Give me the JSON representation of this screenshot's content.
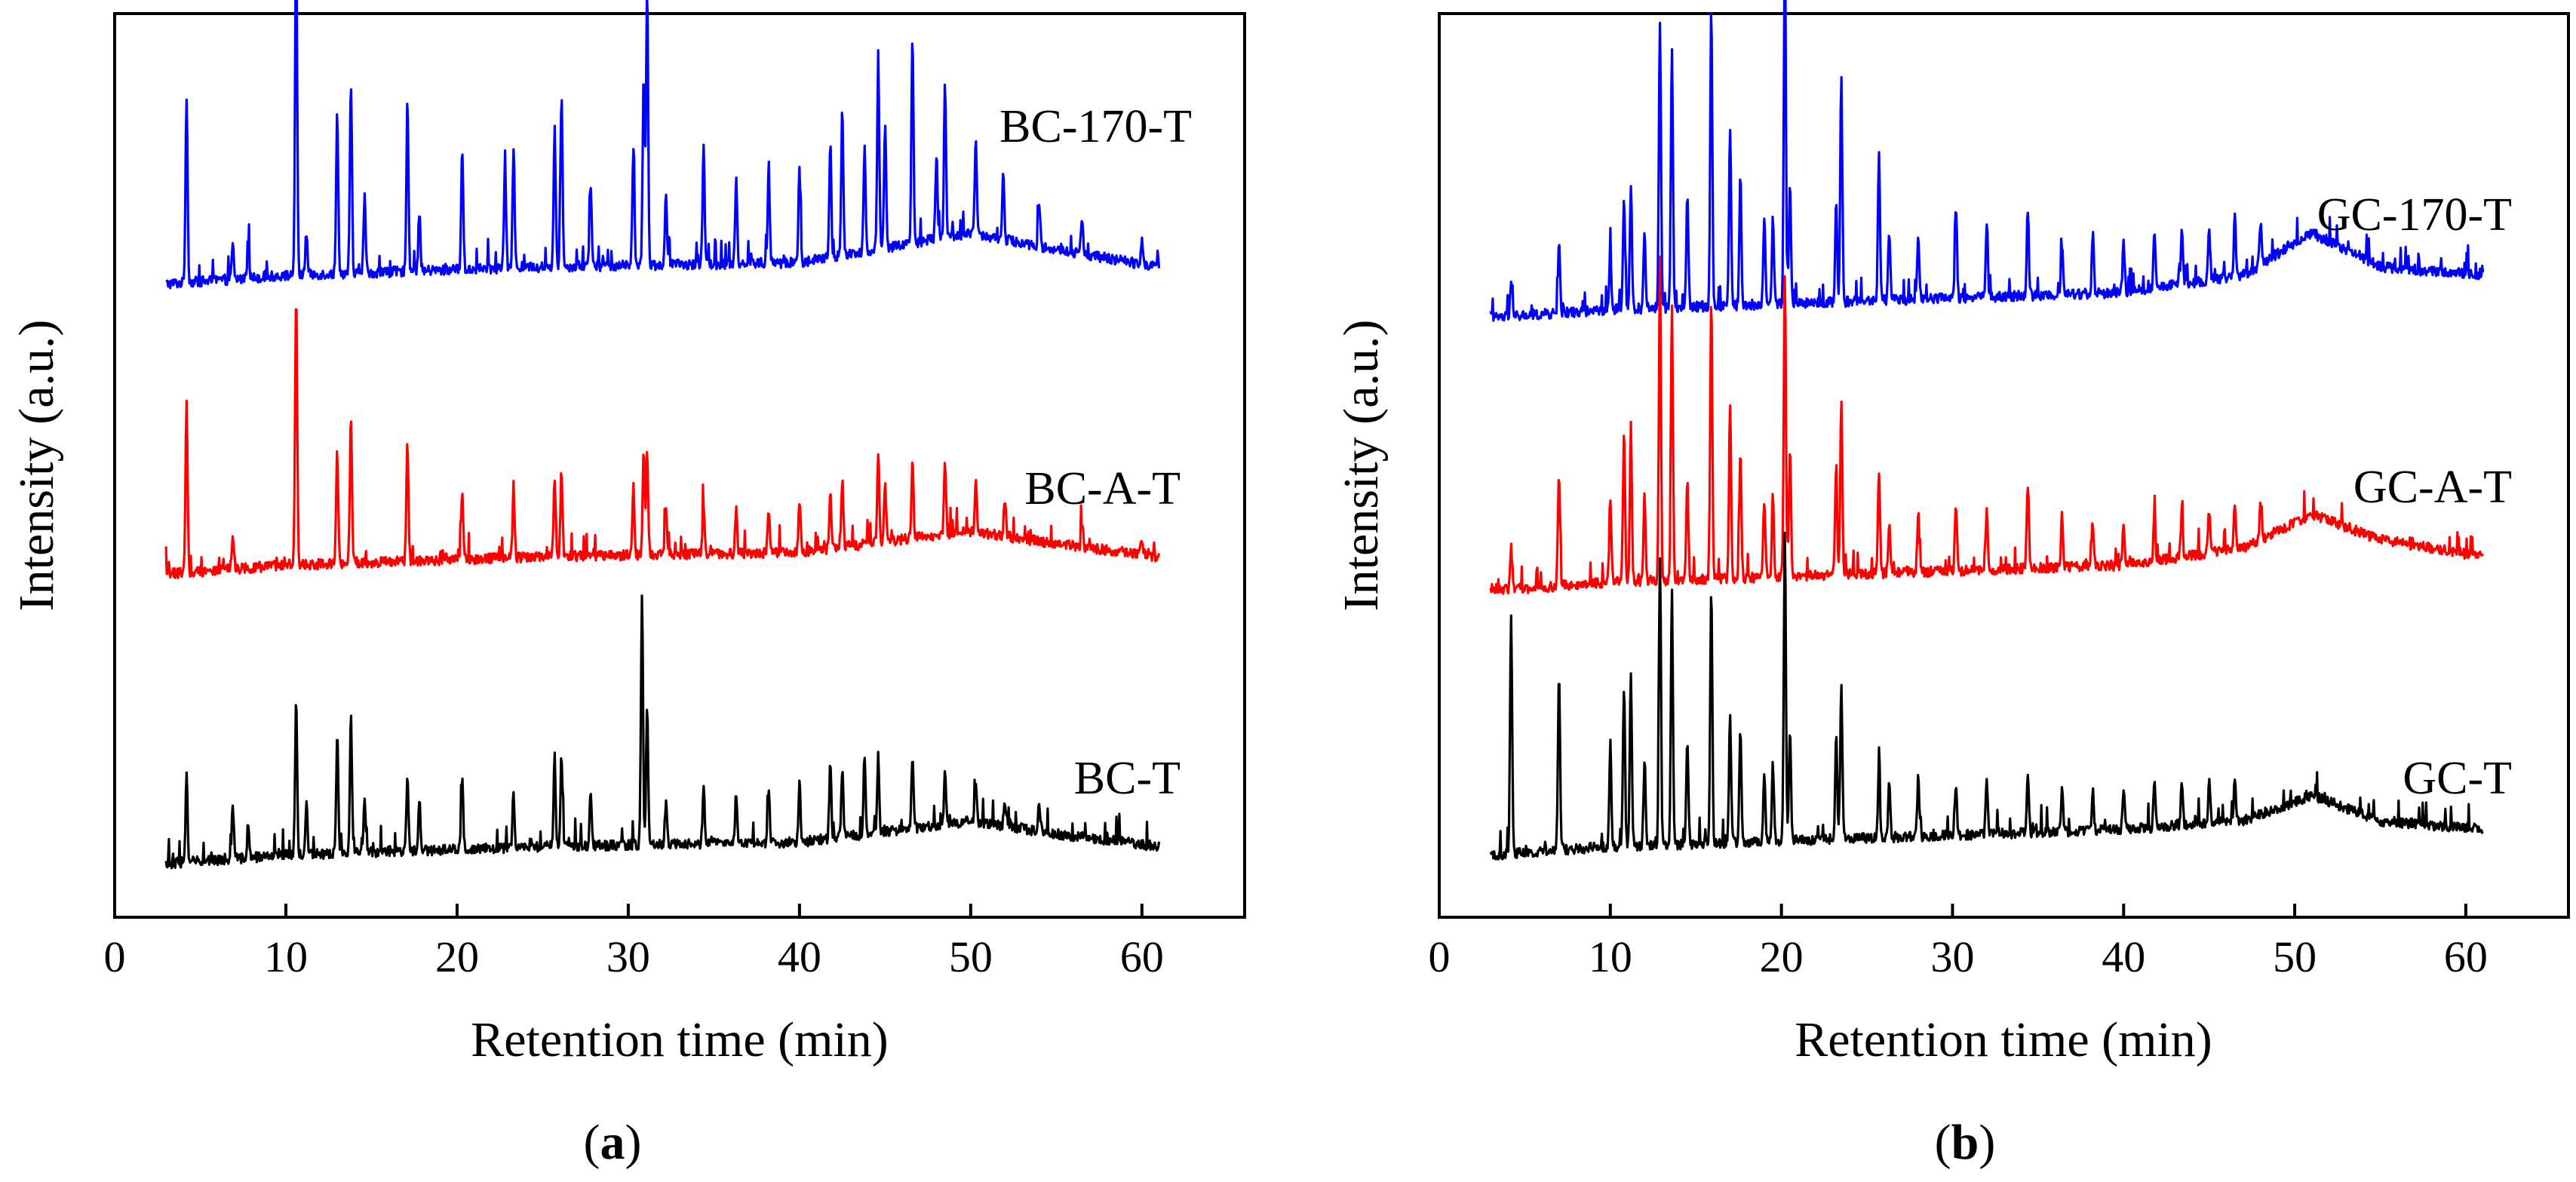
{
  "chart_data": [
    {
      "id": "a",
      "type": "line",
      "panel_label": {
        "open": "(",
        "letter": "a",
        "close": ")"
      },
      "xlabel": "Retention time (min)",
      "ylabel": "Intensity (a.u.)",
      "xlim": [
        0,
        66
      ],
      "xticks": [
        0,
        10,
        20,
        30,
        40,
        50,
        60
      ],
      "y_relative_stack": true,
      "series": [
        {
          "name": "BC-170-T",
          "color": "#0000ff",
          "offset": 0.72,
          "x_range": [
            3,
            61
          ],
          "baseline": [
            [
              3,
              0.0
            ],
            [
              10,
              0.01
            ],
            [
              25,
              0.02
            ],
            [
              40,
              0.025
            ],
            [
              50,
              0.06
            ],
            [
              55,
              0.04
            ],
            [
              61,
              0.02
            ]
          ],
          "peaks": [
            [
              4.2,
              0.22
            ],
            [
              6.9,
              0.04
            ],
            [
              7.8,
              0.04
            ],
            [
              10.6,
              0.41
            ],
            [
              11.2,
              0.05
            ],
            [
              13.0,
              0.19
            ],
            [
              13.8,
              0.22
            ],
            [
              14.6,
              0.09
            ],
            [
              17.1,
              0.2
            ],
            [
              17.8,
              0.07
            ],
            [
              20.3,
              0.14
            ],
            [
              22.8,
              0.12
            ],
            [
              23.3,
              0.14
            ],
            [
              25.7,
              0.16
            ],
            [
              26.1,
              0.2
            ],
            [
              27.8,
              0.1
            ],
            [
              30.3,
              0.14
            ],
            [
              30.9,
              0.22
            ],
            [
              31.1,
              0.32
            ],
            [
              32.2,
              0.08
            ],
            [
              34.4,
              0.14
            ],
            [
              36.3,
              0.1
            ],
            [
              38.2,
              0.11
            ],
            [
              40.0,
              0.11
            ],
            [
              41.8,
              0.13
            ],
            [
              42.5,
              0.17
            ],
            [
              43.8,
              0.12
            ],
            [
              44.6,
              0.22
            ],
            [
              45.0,
              0.15
            ],
            [
              46.6,
              0.24
            ],
            [
              48.0,
              0.1
            ],
            [
              48.5,
              0.18
            ],
            [
              50.3,
              0.11
            ],
            [
              51.9,
              0.08
            ],
            [
              54.0,
              0.05
            ],
            [
              56.5,
              0.04
            ],
            [
              60.0,
              0.03
            ]
          ]
        },
        {
          "name": "BC-A-T",
          "color": "#ff0000",
          "offset": 0.38,
          "x_range": [
            3,
            61
          ],
          "baseline": [
            [
              3,
              0.0
            ],
            [
              10,
              0.01
            ],
            [
              25,
              0.02
            ],
            [
              40,
              0.025
            ],
            [
              50,
              0.05
            ],
            [
              55,
              0.035
            ],
            [
              61,
              0.02
            ]
          ],
          "peaks": [
            [
              4.2,
              0.2
            ],
            [
              6.9,
              0.04
            ],
            [
              10.6,
              0.32
            ],
            [
              13.0,
              0.13
            ],
            [
              13.8,
              0.17
            ],
            [
              17.1,
              0.14
            ],
            [
              20.3,
              0.08
            ],
            [
              23.3,
              0.08
            ],
            [
              25.7,
              0.09
            ],
            [
              26.1,
              0.1
            ],
            [
              30.3,
              0.08
            ],
            [
              30.9,
              0.12
            ],
            [
              31.1,
              0.12
            ],
            [
              32.2,
              0.05
            ],
            [
              34.4,
              0.06
            ],
            [
              36.3,
              0.05
            ],
            [
              38.2,
              0.05
            ],
            [
              40.0,
              0.06
            ],
            [
              41.8,
              0.07
            ],
            [
              42.5,
              0.08
            ],
            [
              44.6,
              0.1
            ],
            [
              45.0,
              0.07
            ],
            [
              46.6,
              0.09
            ],
            [
              48.5,
              0.08
            ],
            [
              50.3,
              0.06
            ],
            [
              52.0,
              0.04
            ],
            [
              56.5,
              0.03
            ],
            [
              60.0,
              0.02
            ]
          ]
        },
        {
          "name": "BC-T",
          "color": "#000000",
          "offset": 0.04,
          "x_range": [
            3,
            61
          ],
          "baseline": [
            [
              3,
              0.0
            ],
            [
              10,
              0.01
            ],
            [
              25,
              0.02
            ],
            [
              40,
              0.025
            ],
            [
              50,
              0.05
            ],
            [
              55,
              0.035
            ],
            [
              61,
              0.02
            ]
          ],
          "peaks": [
            [
              4.2,
              0.1
            ],
            [
              6.9,
              0.06
            ],
            [
              7.8,
              0.04
            ],
            [
              10.6,
              0.18
            ],
            [
              11.2,
              0.06
            ],
            [
              13.0,
              0.14
            ],
            [
              13.8,
              0.16
            ],
            [
              14.6,
              0.06
            ],
            [
              17.1,
              0.09
            ],
            [
              17.8,
              0.06
            ],
            [
              20.3,
              0.08
            ],
            [
              23.3,
              0.06
            ],
            [
              25.7,
              0.09
            ],
            [
              26.1,
              0.1
            ],
            [
              27.8,
              0.06
            ],
            [
              30.8,
              0.29
            ],
            [
              31.1,
              0.16
            ],
            [
              32.2,
              0.05
            ],
            [
              34.4,
              0.07
            ],
            [
              36.3,
              0.06
            ],
            [
              38.2,
              0.06
            ],
            [
              40.0,
              0.07
            ],
            [
              41.8,
              0.09
            ],
            [
              42.5,
              0.08
            ],
            [
              43.8,
              0.09
            ],
            [
              44.6,
              0.09
            ],
            [
              46.6,
              0.08
            ],
            [
              48.5,
              0.06
            ],
            [
              50.3,
              0.04
            ],
            [
              52.0,
              0.03
            ],
            [
              54.0,
              0.03
            ]
          ]
        }
      ]
    },
    {
      "id": "b",
      "type": "line",
      "panel_label": {
        "open": "(",
        "letter": "b",
        "close": ")"
      },
      "xlabel": "Retention time (min)",
      "ylabel": "Intensity (a.u.)",
      "xlim": [
        0,
        66
      ],
      "xticks": [
        0,
        10,
        20,
        30,
        40,
        50,
        60
      ],
      "y_relative_stack": true,
      "series": [
        {
          "name": "GC-170-T",
          "color": "#0000ff",
          "offset": 0.68,
          "x_range": [
            3,
            61
          ],
          "baseline": [
            [
              3,
              0.0
            ],
            [
              10,
              0.01
            ],
            [
              25,
              0.02
            ],
            [
              40,
              0.03
            ],
            [
              47,
              0.05
            ],
            [
              51,
              0.1
            ],
            [
              55,
              0.06
            ],
            [
              61,
              0.05
            ]
          ],
          "peaks": [
            [
              4.2,
              0.04
            ],
            [
              7.0,
              0.08
            ],
            [
              10.0,
              0.07
            ],
            [
              10.8,
              0.13
            ],
            [
              11.2,
              0.14
            ],
            [
              12.0,
              0.09
            ],
            [
              12.9,
              0.34
            ],
            [
              13.6,
              0.31
            ],
            [
              14.5,
              0.13
            ],
            [
              15.9,
              0.35
            ],
            [
              17.0,
              0.21
            ],
            [
              17.6,
              0.15
            ],
            [
              19.0,
              0.1
            ],
            [
              19.5,
              0.1
            ],
            [
              20.2,
              0.42
            ],
            [
              20.5,
              0.14
            ],
            [
              23.2,
              0.12
            ],
            [
              23.5,
              0.26
            ],
            [
              25.7,
              0.17
            ],
            [
              26.3,
              0.08
            ],
            [
              28.0,
              0.07
            ],
            [
              30.2,
              0.11
            ],
            [
              32.0,
              0.09
            ],
            [
              34.4,
              0.1
            ],
            [
              36.4,
              0.06
            ],
            [
              38.2,
              0.07
            ],
            [
              40.0,
              0.06
            ],
            [
              41.8,
              0.06
            ],
            [
              43.4,
              0.06
            ],
            [
              45.0,
              0.06
            ],
            [
              46.5,
              0.07
            ],
            [
              48.0,
              0.05
            ]
          ]
        },
        {
          "name": "GC-A-T",
          "color": "#ff0000",
          "offset": 0.36,
          "x_range": [
            3,
            61
          ],
          "baseline": [
            [
              3,
              0.0
            ],
            [
              10,
              0.01
            ],
            [
              25,
              0.02
            ],
            [
              40,
              0.03
            ],
            [
              47,
              0.05
            ],
            [
              51,
              0.09
            ],
            [
              55,
              0.06
            ],
            [
              61,
              0.04
            ]
          ],
          "peaks": [
            [
              4.2,
              0.05
            ],
            [
              7.0,
              0.13
            ],
            [
              10.0,
              0.1
            ],
            [
              10.8,
              0.18
            ],
            [
              11.2,
              0.18
            ],
            [
              12.0,
              0.1
            ],
            [
              12.9,
              0.36
            ],
            [
              13.6,
              0.32
            ],
            [
              14.5,
              0.12
            ],
            [
              15.9,
              0.33
            ],
            [
              17.0,
              0.2
            ],
            [
              17.6,
              0.15
            ],
            [
              19.0,
              0.09
            ],
            [
              19.5,
              0.1
            ],
            [
              20.2,
              0.36
            ],
            [
              20.5,
              0.15
            ],
            [
              23.2,
              0.13
            ],
            [
              23.5,
              0.2
            ],
            [
              25.7,
              0.12
            ],
            [
              26.3,
              0.06
            ],
            [
              28.0,
              0.07
            ],
            [
              30.2,
              0.08
            ],
            [
              32.0,
              0.07
            ],
            [
              34.4,
              0.1
            ],
            [
              36.4,
              0.06
            ],
            [
              38.2,
              0.05
            ],
            [
              40.0,
              0.05
            ],
            [
              41.8,
              0.05
            ],
            [
              43.4,
              0.05
            ],
            [
              45.0,
              0.05
            ],
            [
              46.5,
              0.05
            ],
            [
              48.0,
              0.04
            ]
          ]
        },
        {
          "name": "GC-T",
          "color": "#000000",
          "offset": 0.05,
          "x_range": [
            3,
            61
          ],
          "baseline": [
            [
              3,
              0.0
            ],
            [
              10,
              0.01
            ],
            [
              25,
              0.02
            ],
            [
              40,
              0.03
            ],
            [
              47,
              0.04
            ],
            [
              51,
              0.07
            ],
            [
              55,
              0.04
            ],
            [
              61,
              0.03
            ]
          ],
          "peaks": [
            [
              4.2,
              0.28
            ],
            [
              7.0,
              0.21
            ],
            [
              10.0,
              0.12
            ],
            [
              10.8,
              0.19
            ],
            [
              11.2,
              0.2
            ],
            [
              12.0,
              0.1
            ],
            [
              12.9,
              0.34
            ],
            [
              13.6,
              0.3
            ],
            [
              14.5,
              0.12
            ],
            [
              15.9,
              0.3
            ],
            [
              17.0,
              0.15
            ],
            [
              17.6,
              0.13
            ],
            [
              19.0,
              0.08
            ],
            [
              19.5,
              0.09
            ],
            [
              20.2,
              0.36
            ],
            [
              20.5,
              0.13
            ],
            [
              23.2,
              0.12
            ],
            [
              23.5,
              0.18
            ],
            [
              25.7,
              0.08
            ],
            [
              26.3,
              0.06
            ],
            [
              28.0,
              0.07
            ],
            [
              30.2,
              0.06
            ],
            [
              32.0,
              0.06
            ],
            [
              34.4,
              0.07
            ],
            [
              36.4,
              0.05
            ],
            [
              38.2,
              0.05
            ],
            [
              40.0,
              0.05
            ],
            [
              41.8,
              0.05
            ],
            [
              43.4,
              0.05
            ],
            [
              45.0,
              0.05
            ],
            [
              46.5,
              0.05
            ]
          ]
        }
      ]
    }
  ]
}
